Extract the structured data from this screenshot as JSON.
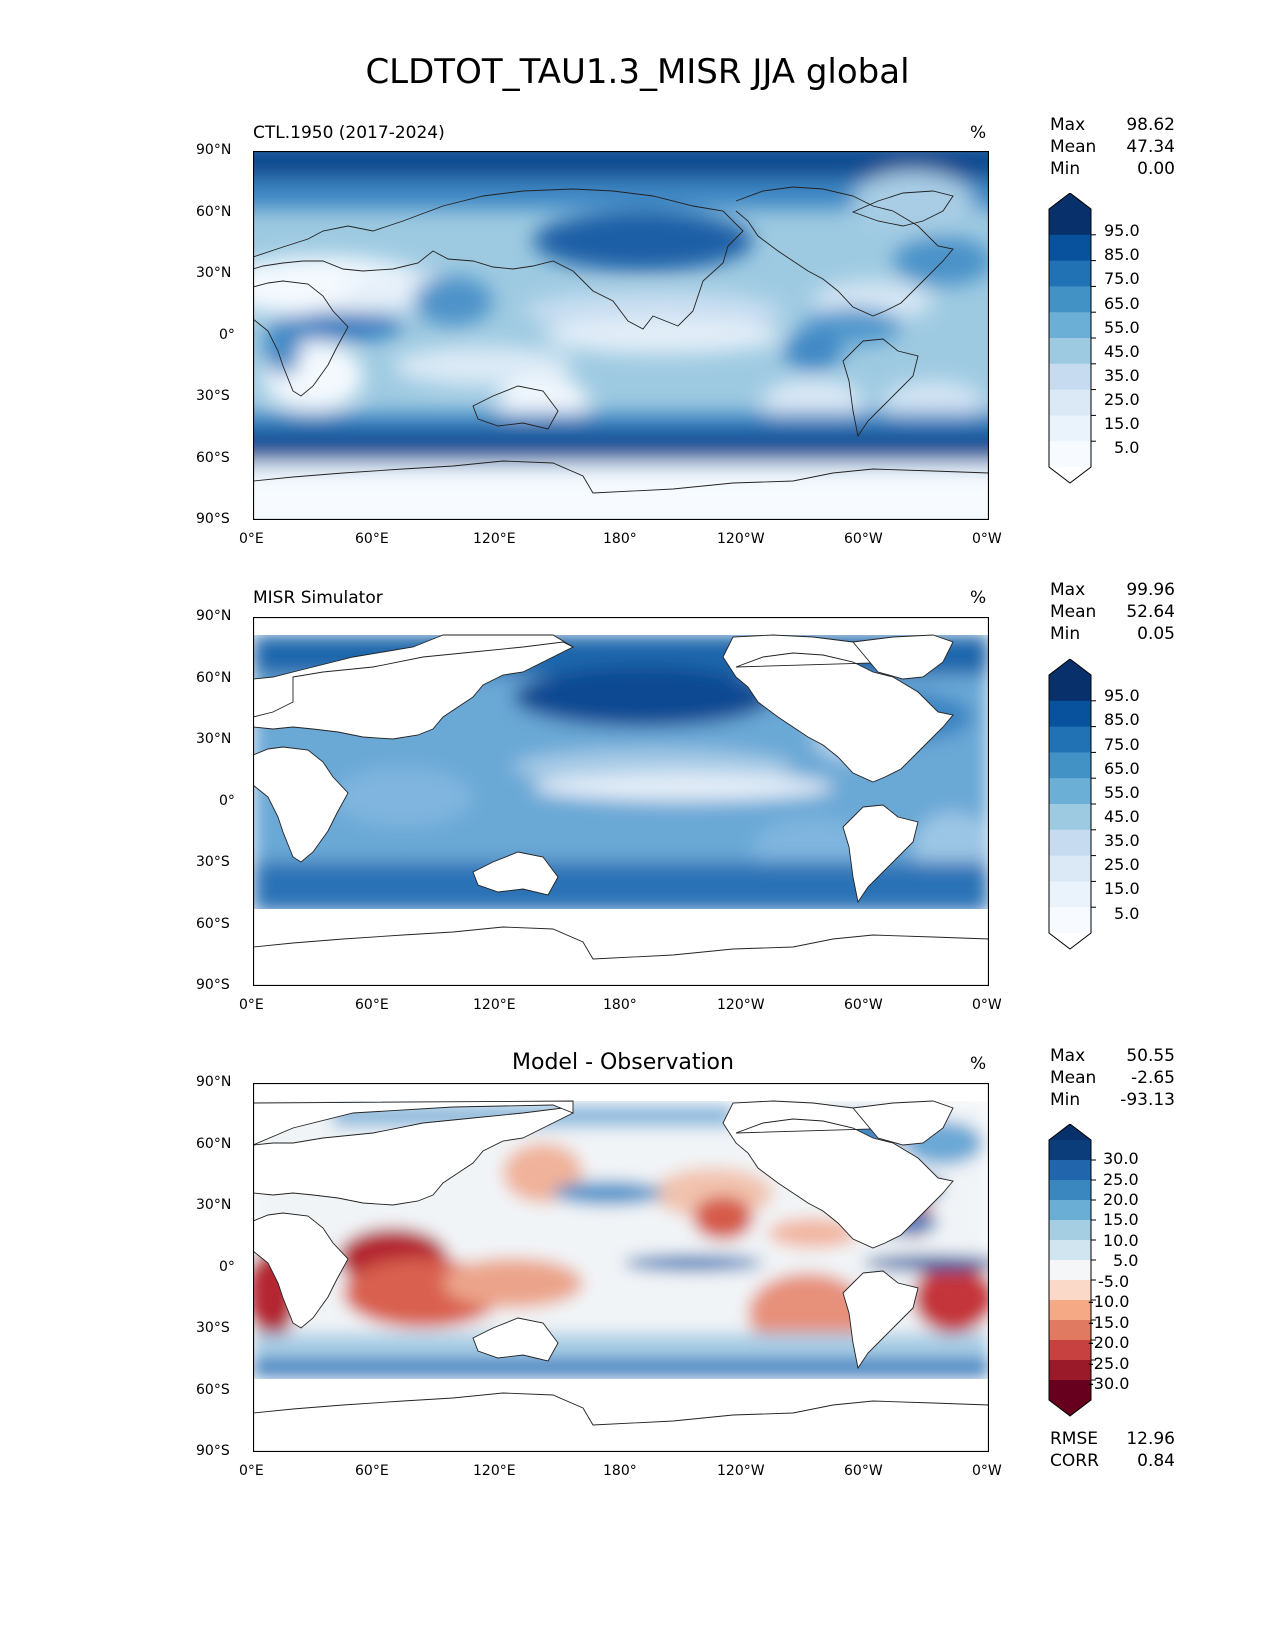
{
  "figure": {
    "title": "CLDTOT_TAU1.3_MISR JJA global"
  },
  "axes": {
    "lat_ticks": [
      "90°N",
      "60°N",
      "30°N",
      "0°",
      "30°S",
      "60°S",
      "90°S"
    ],
    "lon_ticks": [
      "0°E",
      "60°E",
      "120°E",
      "180°",
      "120°W",
      "60°W",
      "0°W"
    ]
  },
  "panels": [
    {
      "title": "CTL.1950 (2017-2024)",
      "units": "%",
      "stats": [
        {
          "label": "Max",
          "value": "98.62"
        },
        {
          "label": "Mean",
          "value": "47.34"
        },
        {
          "label": "Min",
          "value": "0.00"
        }
      ],
      "colorbar": {
        "ticks": [
          "95.0",
          "85.0",
          "75.0",
          "65.0",
          "55.0",
          "45.0",
          "35.0",
          "25.0",
          "15.0",
          "5.0"
        ],
        "colors": [
          "#08306b",
          "#08519c",
          "#2171b5",
          "#4292c6",
          "#6baed6",
          "#9ecae1",
          "#c6dbef",
          "#dbe9f6",
          "#eaf2fb",
          "#f7fbff"
        ],
        "extend_top": "#08306b",
        "extend_bottom": "#ffffff"
      }
    },
    {
      "title": "MISR Simulator",
      "units": "%",
      "stats": [
        {
          "label": "Max",
          "value": "99.96"
        },
        {
          "label": "Mean",
          "value": "52.64"
        },
        {
          "label": "Min",
          "value": "0.05"
        }
      ],
      "colorbar": {
        "ticks": [
          "95.0",
          "85.0",
          "75.0",
          "65.0",
          "55.0",
          "45.0",
          "35.0",
          "25.0",
          "15.0",
          "5.0"
        ],
        "colors": [
          "#08306b",
          "#08519c",
          "#2171b5",
          "#4292c6",
          "#6baed6",
          "#9ecae1",
          "#c6dbef",
          "#dbe9f6",
          "#eaf2fb",
          "#f7fbff"
        ],
        "extend_top": "#08306b",
        "extend_bottom": "#ffffff"
      }
    },
    {
      "title": "Model - Observation",
      "units": "%",
      "stats": [
        {
          "label": "Max",
          "value": "50.55"
        },
        {
          "label": "Mean",
          "value": "-2.65"
        },
        {
          "label": "Min",
          "value": "-93.13"
        }
      ],
      "metrics": [
        {
          "label": "RMSE",
          "value": "12.96"
        },
        {
          "label": "CORR",
          "value": "0.84"
        }
      ],
      "colorbar": {
        "ticks": [
          "30.0",
          "25.0",
          "20.0",
          "15.0",
          "10.0",
          "5.0",
          "-5.0",
          "-10.0",
          "-15.0",
          "-20.0",
          "-25.0",
          "-30.0"
        ],
        "colors": [
          "#0b3d7a",
          "#2166ac",
          "#3a87c0",
          "#6aaed6",
          "#a6cee3",
          "#d1e5f0",
          "#f4f6f8",
          "#fbd9c8",
          "#f5a985",
          "#e07b62",
          "#c6413f",
          "#9b1a2a",
          "#67001f"
        ],
        "extend_top": "#08306b",
        "extend_bottom": "#67001f"
      }
    }
  ]
}
